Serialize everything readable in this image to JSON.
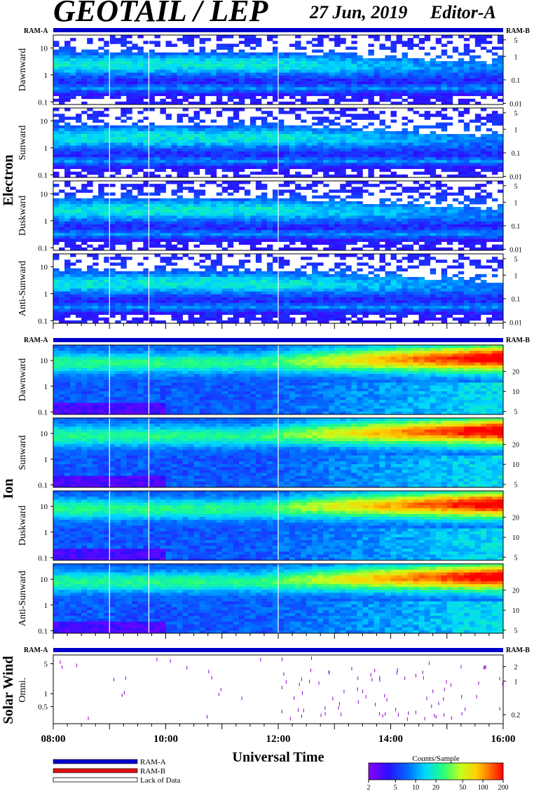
{
  "header": {
    "title": "GEOTAIL / LEP",
    "date": "27 Jun, 2019",
    "editor": "Editor-A"
  },
  "colors": {
    "ram_a": "#0000cc",
    "ram_b": "#dd1111",
    "lack_of_data": "#ffffff",
    "solar_wind_tick": "#8800cc"
  },
  "chart_data": [
    {
      "type": "heatmap",
      "group": "Electron",
      "bar_left": "RAM-A",
      "bar_right": "RAM-B",
      "panels": [
        {
          "label": "Dawnward",
          "pattern": "electron",
          "seed": 1
        },
        {
          "label": "Sunward",
          "pattern": "electron",
          "seed": 2
        },
        {
          "label": "Duskward",
          "pattern": "electron",
          "seed": 3
        },
        {
          "label": "Anti-Sunward",
          "pattern": "electron",
          "seed": 4
        }
      ],
      "y_left_ticks": [
        "10",
        "1",
        "0.1"
      ],
      "y_left_values": [
        10,
        1,
        0.1
      ],
      "y_left_range": [
        0.08,
        30
      ],
      "y_right_ticks": [
        "5",
        "1",
        "0.1",
        "0.01"
      ],
      "y_right_values": [
        5,
        1,
        0.1,
        0.01
      ],
      "y_right_range": [
        0.009,
        8
      ]
    },
    {
      "type": "heatmap",
      "group": "Ion",
      "bar_left": "RAM-A",
      "bar_right": "RAM-B",
      "panels": [
        {
          "label": "Dawnward",
          "pattern": "ion",
          "seed": 5
        },
        {
          "label": "Sunward",
          "pattern": "ion",
          "seed": 6
        },
        {
          "label": "Duskward",
          "pattern": "ion",
          "seed": 7
        },
        {
          "label": "Anti-Sunward",
          "pattern": "ion",
          "seed": 8
        }
      ],
      "y_left_ticks": [
        "10",
        "1",
        "0.1"
      ],
      "y_left_values": [
        10,
        1,
        0.1
      ],
      "y_left_range": [
        0.08,
        40
      ],
      "y_right_ticks": [
        "20",
        "10",
        "5"
      ],
      "y_right_values": [
        20,
        10,
        5
      ],
      "y_right_range": [
        4.5,
        50
      ]
    },
    {
      "type": "scatter",
      "group": "Solar Wind",
      "bar_left": "RAM-A",
      "bar_right": "RAM-B",
      "panel_label": "Omni.",
      "y_left_ticks": [
        "5",
        "1",
        "0.5"
      ],
      "y_left_values": [
        5,
        1,
        0.5
      ],
      "y_left_range": [
        0.2,
        8
      ],
      "y_right_ticks": [
        "2",
        "1",
        "0.2"
      ],
      "y_right_values": [
        2,
        1,
        0.2
      ],
      "y_right_range": [
        0.13,
        3.5
      ]
    }
  ],
  "time_axis": {
    "label": "Universal Time",
    "start_hour": 8,
    "end_hour": 16,
    "ticks": [
      "08:00",
      "10:00",
      "12:00",
      "14:00",
      "16:00"
    ],
    "tick_hours": [
      8,
      10,
      12,
      14,
      16
    ],
    "data_gaps_hours": [
      9.0,
      9.7,
      12.0
    ]
  },
  "legend": {
    "items": [
      "RAM-A",
      "RAM-B",
      "Lack of Data"
    ]
  },
  "colorbar": {
    "title": "Counts/Sample",
    "ticks": [
      "2",
      "5",
      "10",
      "20",
      "50",
      "100",
      "200"
    ],
    "tick_values": [
      2,
      5,
      10,
      20,
      50,
      100,
      200
    ],
    "range": [
      2,
      200
    ]
  }
}
